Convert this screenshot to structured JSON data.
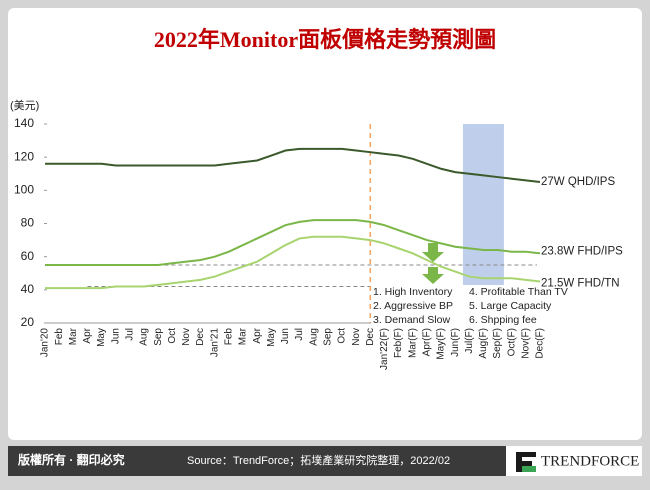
{
  "chart_data": {
    "type": "line",
    "title": "2022年Monitor面板價格走勢預測圖",
    "y_label": "(美元)",
    "categories": [
      "Jan'20",
      "Feb",
      "Mar",
      "Apr",
      "May",
      "Jun",
      "Jul",
      "Aug",
      "Sep",
      "Oct",
      "Nov",
      "Dec",
      "Jan'21",
      "Feb",
      "Mar",
      "Apr",
      "May",
      "Jun",
      "Jul",
      "Aug",
      "Sep",
      "Oct",
      "Nov",
      "Dec",
      "Jan'22(F)",
      "Feb(F)",
      "Mar(F)",
      "Apr(F)",
      "May(F)",
      "Jun(F)",
      "Jul(F)",
      "Aug(F)",
      "Sep(F)",
      "Oct(F)",
      "Nov(F)",
      "Dec(F)"
    ],
    "series": [
      {
        "name": "27W QHD/IPS",
        "color": "#3b5a2c",
        "values": [
          116,
          116,
          116,
          116,
          116,
          115,
          115,
          115,
          115,
          115,
          115,
          115,
          115,
          116,
          117,
          118,
          121,
          124,
          125,
          125,
          125,
          125,
          124,
          123,
          122,
          121,
          119,
          116,
          113,
          111,
          110,
          109,
          108,
          107,
          106,
          105
        ]
      },
      {
        "name": "23.8W FHD/IPS",
        "color": "#7ab648",
        "values": [
          55,
          55,
          55,
          55,
          55,
          55,
          55,
          55,
          55,
          56,
          57,
          58,
          60,
          63,
          67,
          71,
          75,
          79,
          81,
          82,
          82,
          82,
          82,
          81,
          79,
          76,
          73,
          70,
          68,
          66,
          65,
          64,
          64,
          63,
          63,
          62
        ]
      },
      {
        "name": "21.5W FHD/TN",
        "color": "#a8d46f",
        "values": [
          41,
          41,
          41,
          41,
          41,
          42,
          42,
          42,
          43,
          44,
          45,
          46,
          48,
          51,
          54,
          57,
          62,
          67,
          71,
          72,
          72,
          72,
          71,
          70,
          68,
          65,
          62,
          58,
          54,
          51,
          48,
          47,
          47,
          47,
          46,
          45
        ]
      }
    ],
    "reference_lines": [
      55,
      42
    ],
    "forecast_start": "Jan'22(F)",
    "highlight_range": [
      "Jul(F)",
      "Sep(F)"
    ],
    "annotations": [
      "1. High Inventory",
      "2. Aggressive BP",
      "3. Demand Slow",
      "4. Profitable Than TV",
      "5. Large Capacity",
      "6. Shpping fee"
    ],
    "ylim": [
      20,
      140
    ],
    "yticks": [
      20,
      40,
      60,
      80,
      100,
      120,
      140
    ]
  },
  "footer": {
    "copyright": "版權所有 · 翻印必究",
    "source": "Source：TrendForce；拓墣產業研究院整理，2022/02",
    "logo": "TRENDFORCE"
  }
}
